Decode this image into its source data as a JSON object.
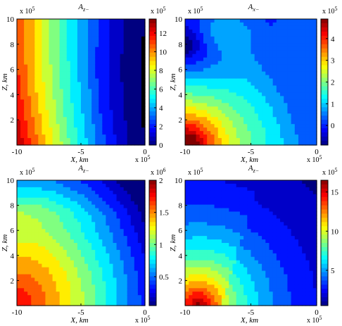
{
  "chart_data": [
    {
      "type": "heatmap",
      "title_main": "A",
      "title_sub": "z−",
      "x_exponent_label": "x 10",
      "x_exponent_power": "5",
      "y_exponent_label": "x 10",
      "y_exponent_power": "5",
      "colorbar_exponent_label": "x 10",
      "colorbar_exponent_power": "5",
      "xlabel": "X, km",
      "ylabel": "Z, km",
      "xlim": [
        -10,
        0
      ],
      "ylim": [
        0,
        10
      ],
      "x_ticks": [
        "-10",
        "-5",
        "0"
      ],
      "y_ticks": [
        "2",
        "4",
        "6",
        "8",
        "10"
      ],
      "colorbar_range": [
        0,
        13.5
      ],
      "colorbar_ticks": [
        "0",
        "2",
        "4",
        "6",
        "8",
        "10",
        "12"
      ],
      "pattern": "vertical-bands",
      "colormap": "jet"
    },
    {
      "type": "heatmap",
      "title_main": "A",
      "title_sub": "x−",
      "x_exponent_label": "x 10",
      "x_exponent_power": "5",
      "y_exponent_label": "x 10",
      "y_exponent_power": "5",
      "colorbar_exponent_label": "x 10",
      "colorbar_exponent_power": "5",
      "xlabel": "X, km",
      "ylabel": "Z, km",
      "xlim": [
        -10,
        0
      ],
      "ylim": [
        0,
        10
      ],
      "x_ticks": [
        "-10",
        "-5",
        "0"
      ],
      "y_ticks": [
        "2",
        "4",
        "6",
        "8",
        "10"
      ],
      "colorbar_range": [
        -0.9,
        4.9
      ],
      "colorbar_ticks": [
        "0",
        "1",
        "2",
        "3",
        "4"
      ],
      "pattern": "hyperbolic",
      "colormap": "jet"
    },
    {
      "type": "heatmap",
      "title_main": "A",
      "title_sub": "z−",
      "x_exponent_label": "x 10",
      "x_exponent_power": "5",
      "y_exponent_label": "x 10",
      "y_exponent_power": "5",
      "colorbar_exponent_label": "x 10",
      "colorbar_exponent_power": "6",
      "xlabel": "X, km",
      "ylabel": "Z, km",
      "xlim": [
        -10,
        0
      ],
      "ylim": [
        0,
        10
      ],
      "x_ticks": [
        "-10",
        "-5",
        "0"
      ],
      "y_ticks": [
        "2",
        "4",
        "6",
        "8",
        "10"
      ],
      "colorbar_range": [
        0.05,
        2.0
      ],
      "colorbar_ticks": [
        "0.5",
        "1",
        "1.5",
        "2"
      ],
      "pattern": "chevron",
      "colormap": "jet"
    },
    {
      "type": "heatmap",
      "title_main": "A",
      "title_sub": "z−",
      "x_exponent_label": "x 10",
      "x_exponent_power": "5",
      "y_exponent_label": "x 10",
      "y_exponent_power": "5",
      "colorbar_exponent_label": "x 10",
      "colorbar_exponent_power": "5",
      "xlabel": "X, km",
      "ylabel": "Z, km",
      "xlim": [
        -10,
        0
      ],
      "ylim": [
        0,
        10
      ],
      "x_ticks": [
        "-10",
        "-5",
        "0"
      ],
      "y_ticks": [
        "2",
        "4",
        "6",
        "8",
        "10"
      ],
      "colorbar_range": [
        0.5,
        16.5
      ],
      "colorbar_ticks": [
        "5",
        "10",
        "15"
      ],
      "pattern": "radial-with-break",
      "colormap": "jet"
    }
  ]
}
